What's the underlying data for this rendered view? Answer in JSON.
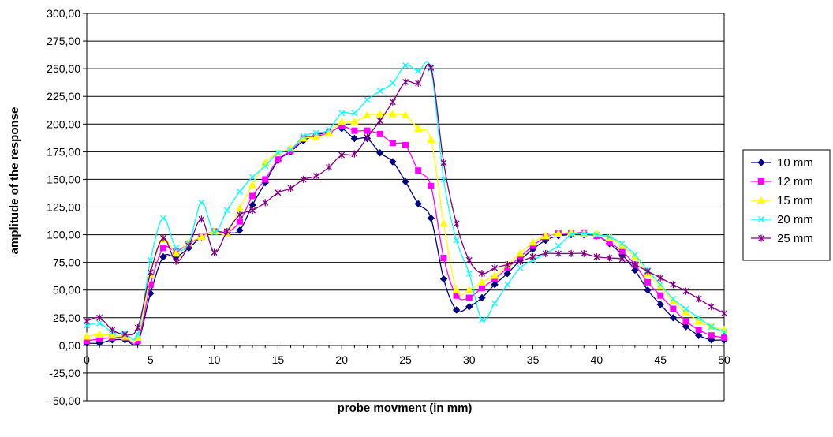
{
  "chart_data": {
    "type": "line",
    "title": "",
    "xlabel": "probe movment (in mm)",
    "ylabel": "amplitude of the response",
    "xlim": [
      0,
      50
    ],
    "ylim": [
      -50,
      300
    ],
    "grid": "horizontal",
    "legend_position": "right",
    "x_ticks": [
      "0",
      "5",
      "10",
      "15",
      "20",
      "25",
      "30",
      "35",
      "40",
      "45",
      "50"
    ],
    "y_ticks": [
      "-50,00",
      "-25,00",
      "0,00",
      "25,00",
      "50,00",
      "75,00",
      "100,00",
      "125,00",
      "150,00",
      "175,00",
      "200,00",
      "225,00",
      "250,00",
      "275,00",
      "300,00"
    ],
    "x": [
      0,
      1,
      2,
      3,
      4,
      5,
      6,
      7,
      8,
      9,
      10,
      11,
      12,
      13,
      14,
      15,
      16,
      17,
      18,
      19,
      20,
      21,
      22,
      23,
      24,
      25,
      26,
      27,
      28,
      29,
      30,
      31,
      32,
      33,
      34,
      35,
      36,
      37,
      38,
      39,
      40,
      41,
      42,
      43,
      44,
      45,
      46,
      47,
      48,
      49,
      50
    ],
    "series": [
      {
        "name": "10 mm",
        "color": "#000080",
        "marker": "diamond",
        "values": [
          2,
          2,
          5,
          5,
          3,
          47,
          80,
          80,
          88,
          98,
          103,
          102,
          104,
          127,
          147,
          167,
          175,
          185,
          190,
          193,
          196,
          187,
          187,
          174,
          166,
          148,
          128,
          115,
          60,
          32,
          35,
          43,
          55,
          65,
          77,
          87,
          95,
          99,
          100,
          100,
          99,
          92,
          82,
          68,
          50,
          37,
          25,
          17,
          9,
          5,
          5
        ]
      },
      {
        "name": "12 mm",
        "color": "#FF00FF",
        "marker": "square",
        "values": [
          4,
          6,
          7,
          7,
          4,
          55,
          88,
          85,
          92,
          98,
          103,
          102,
          112,
          135,
          150,
          168,
          176,
          187,
          189,
          192,
          198,
          194,
          194,
          191,
          183,
          181,
          158,
          144,
          79,
          45,
          43,
          52,
          60,
          70,
          80,
          90,
          98,
          101,
          101,
          102,
          99,
          93,
          85,
          73,
          57,
          45,
          33,
          22,
          14,
          9,
          7
        ]
      },
      {
        "name": "15 mm",
        "color": "#FFFF00",
        "marker": "triangle",
        "values": [
          8,
          10,
          9,
          8,
          7,
          64,
          96,
          83,
          93,
          98,
          103,
          101,
          124,
          145,
          165,
          174,
          178,
          187,
          188,
          192,
          202,
          202,
          208,
          209,
          209,
          208,
          196,
          186,
          110,
          50,
          50,
          57,
          63,
          73,
          83,
          93,
          99,
          101,
          102,
          101,
          101,
          97,
          90,
          80,
          65,
          53,
          40,
          30,
          22,
          17,
          14
        ]
      },
      {
        "name": "20 mm",
        "color": "#00FFFF",
        "marker": "x",
        "values": [
          18,
          20,
          12,
          11,
          10,
          77,
          115,
          88,
          92,
          129,
          102,
          122,
          139,
          152,
          162,
          174,
          177,
          189,
          192,
          195,
          210,
          210,
          222,
          230,
          237,
          253,
          248,
          250,
          150,
          95,
          65,
          23,
          38,
          55,
          70,
          77,
          83,
          90,
          100,
          101,
          100,
          98,
          92,
          82,
          68,
          55,
          42,
          33,
          25,
          17,
          12
        ]
      },
      {
        "name": "25 mm",
        "color": "#800080",
        "marker": "star",
        "values": [
          22,
          25,
          14,
          10,
          16,
          66,
          97,
          76,
          90,
          114,
          84,
          103,
          118,
          122,
          129,
          138,
          142,
          150,
          153,
          161,
          172,
          173,
          188,
          203,
          220,
          238,
          237,
          251,
          165,
          110,
          77,
          65,
          70,
          73,
          76,
          80,
          83,
          83,
          83,
          83,
          80,
          79,
          78,
          73,
          67,
          61,
          55,
          49,
          42,
          35,
          29
        ]
      }
    ]
  }
}
